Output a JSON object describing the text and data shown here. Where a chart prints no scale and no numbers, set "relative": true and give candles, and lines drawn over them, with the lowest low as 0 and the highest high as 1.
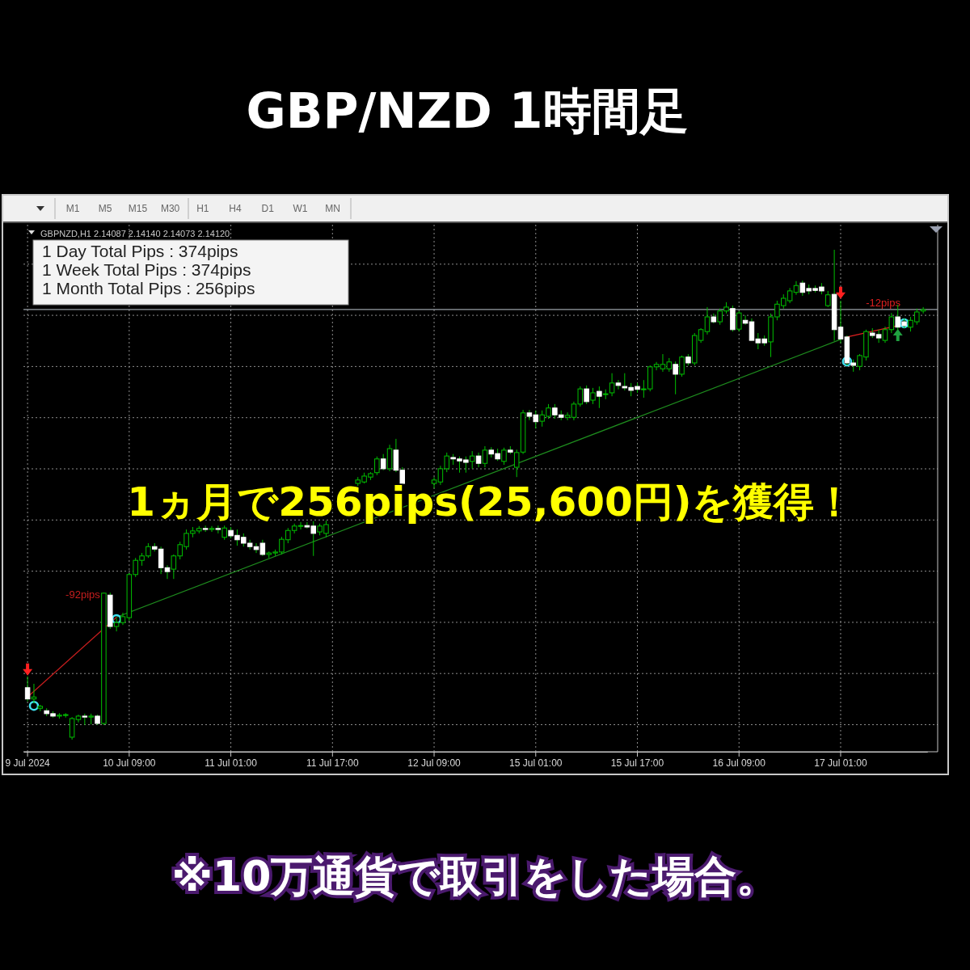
{
  "chart_data": {
    "type": "candlestick",
    "title": "GBP/NZD 1時間足",
    "relative": true,
    "grid": true,
    "categories": [
      "9 Jul 2024",
      null,
      null,
      null,
      null,
      null,
      null,
      null,
      null,
      null,
      null,
      null,
      null,
      null,
      null,
      null,
      "10 Jul 09:00",
      null,
      null,
      null,
      null,
      null,
      null,
      null,
      null,
      null,
      null,
      null,
      null,
      null,
      null,
      null,
      "11 Jul 01:00",
      null,
      null,
      null,
      null,
      null,
      null,
      null,
      null,
      null,
      null,
      null,
      null,
      null,
      null,
      null,
      "11 Jul 17:00",
      null,
      null,
      null,
      null,
      null,
      null,
      null,
      null,
      null,
      null,
      null,
      null,
      null,
      null,
      null,
      "12 Jul 09:00",
      null,
      null,
      null,
      null,
      null,
      null,
      null,
      null,
      null,
      null,
      null,
      null,
      null,
      null,
      null,
      "15 Jul 01:00",
      null,
      null,
      null,
      null,
      null,
      null,
      null,
      null,
      null,
      null,
      null,
      null,
      null,
      null,
      null,
      "15 Jul 17:00",
      null,
      null,
      null,
      null,
      null,
      null,
      null,
      null,
      null,
      null,
      null,
      null,
      null,
      null,
      null,
      "16 Jul 09:00",
      null,
      null,
      null,
      null,
      null,
      null,
      null,
      null,
      null,
      null,
      null,
      null,
      null,
      null,
      null,
      "17 Jul 01:00",
      null,
      null,
      null,
      null,
      null,
      null,
      null,
      null,
      null,
      null,
      null,
      null,
      null
    ],
    "ohlc": [
      [
        0.106,
        0.129,
        0.078,
        0.083
      ],
      [
        0.083,
        0.114,
        0.074,
        0.087
      ],
      [
        0.064,
        0.071,
        0.058,
        0.068
      ],
      [
        0.059,
        0.064,
        0.048,
        0.053
      ],
      [
        0.053,
        0.058,
        0.045,
        0.048
      ],
      [
        0.048,
        0.054,
        0.043,
        0.05
      ],
      [
        0.05,
        0.054,
        0.045,
        0.051
      ],
      [
        0.005,
        0.046,
        0,
        0.043
      ],
      [
        0.041,
        0.051,
        0.035,
        0.048
      ],
      [
        0.048,
        0.053,
        0.03,
        0.046
      ],
      [
        0.046,
        0.053,
        0.031,
        0.048
      ],
      [
        0.048,
        0.051,
        0.03,
        0.033
      ],
      [
        0.033,
        0.3,
        0.03,
        0.299
      ],
      [
        0.295,
        0.3,
        0.226,
        0.231
      ],
      [
        0.231,
        0.248,
        0.221,
        0.239
      ],
      [
        0.239,
        0.259,
        0.234,
        0.251
      ],
      [
        0.249,
        0.34,
        0.243,
        0.337
      ],
      [
        0.337,
        0.371,
        0.332,
        0.366
      ],
      [
        0.366,
        0.381,
        0.355,
        0.375
      ],
      [
        0.375,
        0.401,
        0.371,
        0.394
      ],
      [
        0.394,
        0.401,
        0.384,
        0.389
      ],
      [
        0.389,
        0.394,
        0.338,
        0.351
      ],
      [
        0.351,
        0.356,
        0.328,
        0.343
      ],
      [
        0.348,
        0.378,
        0.328,
        0.375
      ],
      [
        0.375,
        0.404,
        0.368,
        0.398
      ],
      [
        0.394,
        0.429,
        0.388,
        0.421
      ],
      [
        0.421,
        0.434,
        0.413,
        0.426
      ],
      [
        0.426,
        0.436,
        0.421,
        0.431
      ],
      [
        0.431,
        0.437,
        0.424,
        0.429
      ],
      [
        0.429,
        0.436,
        0.424,
        0.431
      ],
      [
        0.431,
        0.437,
        0.421,
        0.429
      ],
      [
        0.413,
        0.437,
        0.408,
        0.432
      ],
      [
        0.427,
        0.434,
        0.411,
        0.416
      ],
      [
        0.417,
        0.429,
        0.396,
        0.408
      ],
      [
        0.413,
        0.421,
        0.394,
        0.401
      ],
      [
        0.401,
        0.408,
        0.388,
        0.394
      ],
      [
        0.394,
        0.401,
        0.381,
        0.388
      ],
      [
        0.401,
        0.408,
        0.375,
        0.378
      ],
      [
        0.378,
        0.384,
        0.371,
        0.381
      ],
      [
        0.381,
        0.388,
        0.375,
        0.383
      ],
      [
        0.383,
        0.414,
        0.378,
        0.409
      ],
      [
        0.408,
        0.432,
        0.401,
        0.427
      ],
      [
        0.427,
        0.441,
        0.421,
        0.436
      ],
      [
        0.436,
        0.444,
        0.429,
        0.437
      ],
      [
        0.437,
        0.444,
        0.431,
        0.434
      ],
      [
        0.436,
        0.446,
        0.375,
        0.421
      ],
      [
        0.424,
        0.441,
        0.417,
        0.436
      ],
      [
        0.421,
        0.447,
        0.413,
        0.439
      ],
      null,
      null,
      null,
      null,
      [
        0.523,
        0.536,
        0.517,
        0.53
      ],
      [
        0.526,
        0.545,
        0.523,
        0.538
      ],
      [
        0.536,
        0.546,
        0.53,
        0.543
      ],
      [
        0.545,
        0.578,
        0.54,
        0.573
      ],
      [
        0.573,
        0.583,
        0.55,
        0.553
      ],
      [
        0.553,
        0.602,
        0.548,
        0.594
      ],
      [
        0.591,
        0.614,
        0.546,
        0.55
      ],
      [
        0.55,
        0.556,
        0.52,
        0.523
      ],
      null,
      null,
      null,
      null,
      [
        0.523,
        0.536,
        0.513,
        0.53
      ],
      [
        0.526,
        0.559,
        0.52,
        0.553
      ],
      [
        0.553,
        0.586,
        0.546,
        0.579
      ],
      [
        0.576,
        0.583,
        0.561,
        0.573
      ],
      [
        0.573,
        0.578,
        0.545,
        0.569
      ],
      [
        0.571,
        0.578,
        0.545,
        0.566
      ],
      [
        0.568,
        0.589,
        0.553,
        0.579
      ],
      [
        0.579,
        0.586,
        0.556,
        0.564
      ],
      [
        0.564,
        0.599,
        0.556,
        0.591
      ],
      [
        0.591,
        0.597,
        0.576,
        0.583
      ],
      [
        0.584,
        0.594,
        0.569,
        0.573
      ],
      [
        0.568,
        0.596,
        0.561,
        0.591
      ],
      [
        0.591,
        0.599,
        0.583,
        0.587
      ],
      [
        0.556,
        0.592,
        0.536,
        0.586
      ],
      [
        0.587,
        0.673,
        0.583,
        0.667
      ],
      [
        0.667,
        0.673,
        0.652,
        0.66
      ],
      [
        0.663,
        0.672,
        0.635,
        0.649
      ],
      [
        0.65,
        0.672,
        0.639,
        0.663
      ],
      [
        0.66,
        0.685,
        0.655,
        0.677
      ],
      [
        0.677,
        0.685,
        0.655,
        0.663
      ],
      [
        0.663,
        0.672,
        0.652,
        0.658
      ],
      [
        0.658,
        0.668,
        0.652,
        0.662
      ],
      [
        0.658,
        0.69,
        0.652,
        0.685
      ],
      [
        0.685,
        0.721,
        0.68,
        0.716
      ],
      [
        0.716,
        0.723,
        0.685,
        0.69
      ],
      [
        0.693,
        0.718,
        0.685,
        0.708
      ],
      [
        0.711,
        0.721,
        0.677,
        0.701
      ],
      [
        0.705,
        0.715,
        0.695,
        0.706
      ],
      [
        0.708,
        0.748,
        0.701,
        0.728
      ],
      [
        0.728,
        0.734,
        0.715,
        0.723
      ],
      [
        0.721,
        0.748,
        0.713,
        0.718
      ],
      [
        0.719,
        0.728,
        0.701,
        0.713
      ],
      [
        0.721,
        0.728,
        0.708,
        0.715
      ],
      [
        0.715,
        0.734,
        0.698,
        0.716
      ],
      [
        0.716,
        0.764,
        0.711,
        0.761
      ],
      [
        0.761,
        0.771,
        0.754,
        0.766
      ],
      [
        0.757,
        0.787,
        0.751,
        0.766
      ],
      [
        0.757,
        0.779,
        0.751,
        0.771
      ],
      [
        0.766,
        0.772,
        0.705,
        0.746
      ],
      [
        0.746,
        0.784,
        0.741,
        0.781
      ],
      [
        0.781,
        0.787,
        0.764,
        0.769
      ],
      [
        0.769,
        0.83,
        0.764,
        0.825
      ],
      [
        0.815,
        0.84,
        0.81,
        0.837
      ],
      [
        0.833,
        0.883,
        0.827,
        0.863
      ],
      [
        0.863,
        0.87,
        0.85,
        0.853
      ],
      [
        0.853,
        0.88,
        0.847,
        0.875
      ],
      [
        0.875,
        0.893,
        0.87,
        0.883
      ],
      [
        0.88,
        0.886,
        0.833,
        0.837
      ],
      [
        0.838,
        0.875,
        0.833,
        0.871
      ],
      [
        0.856,
        0.866,
        0.847,
        0.85
      ],
      [
        0.853,
        0.86,
        0.814,
        0.815
      ],
      [
        0.818,
        0.83,
        0.797,
        0.81
      ],
      [
        0.818,
        0.825,
        0.804,
        0.81
      ],
      [
        0.812,
        0.87,
        0.781,
        0.863
      ],
      [
        0.863,
        0.896,
        0.856,
        0.889
      ],
      [
        0.886,
        0.909,
        0.88,
        0.901
      ],
      [
        0.896,
        0.922,
        0.891,
        0.916
      ],
      [
        0.913,
        0.936,
        0.908,
        0.927
      ],
      [
        0.932,
        0.937,
        0.906,
        0.913
      ],
      [
        0.921,
        0.929,
        0.909,
        0.916
      ],
      [
        0.921,
        0.927,
        0.913,
        0.917
      ],
      [
        0.924,
        0.932,
        0.909,
        0.916
      ],
      [
        0.886,
        0.916,
        0.883,
        0.908
      ],
      [
        0.909,
        1,
        0.814,
        0.837
      ],
      [
        0.842,
        0.896,
        0.809,
        0.818
      ],
      [
        0.822,
        0.825,
        0.764,
        0.769
      ],
      [
        0.769,
        0.776,
        0.751,
        0.764
      ],
      [
        0.762,
        0.787,
        0.754,
        0.784
      ],
      [
        0.781,
        0.837,
        0.774,
        0.833
      ],
      [
        0.83,
        0.84,
        0.82,
        0.825
      ],
      [
        0.827,
        0.837,
        0.81,
        0.82
      ],
      [
        0.815,
        0.843,
        0.81,
        0.837
      ],
      [
        0.837,
        0.871,
        0.83,
        0.863
      ],
      [
        0.863,
        0.888,
        0.837,
        0.842
      ],
      [
        0.853,
        0.86,
        0.84,
        0.845
      ],
      [
        0.842,
        0.863,
        0.833,
        0.856
      ],
      [
        0.853,
        0.88,
        0.847,
        0.873
      ],
      [
        0.875,
        0.883,
        0.87,
        0.878
      ]
    ],
    "series": [
      {
        "type": "line",
        "name": "-92pips",
        "color": "#c81e1e",
        "values": [
          0.087,
          null,
          null,
          null,
          null,
          null,
          null,
          null,
          null,
          null,
          null,
          null,
          null,
          null,
          0.25,
          null,
          null,
          null,
          null,
          null,
          null,
          null,
          null,
          null,
          null,
          null,
          null,
          null,
          null,
          null,
          null,
          null,
          null,
          null,
          null,
          null,
          null,
          null,
          null,
          null,
          null,
          null,
          null,
          null,
          null,
          null,
          null,
          null,
          null,
          null,
          null,
          null,
          null,
          null,
          null,
          null,
          null,
          null,
          null,
          null,
          null,
          null,
          null,
          null,
          null,
          null,
          null,
          null,
          null,
          null,
          null,
          null,
          null,
          null,
          null,
          null,
          null,
          null,
          null,
          null,
          null,
          null,
          null,
          null,
          null,
          null,
          null,
          null,
          null,
          null,
          null,
          null,
          null,
          null,
          null,
          null,
          null,
          null,
          null,
          null,
          null,
          null,
          null,
          null,
          null,
          null,
          null,
          null,
          null,
          null,
          null,
          null,
          null,
          null,
          null,
          null,
          null,
          null,
          null,
          null,
          null,
          null,
          null,
          null,
          null,
          null,
          null,
          null,
          null,
          null,
          null,
          null,
          null,
          null,
          null,
          null,
          null,
          null,
          null,
          null,
          null,
          null
        ]
      },
      {
        "type": "line",
        "color": "#1e8c1e",
        "values": [
          null,
          null,
          null,
          null,
          null,
          null,
          null,
          null,
          null,
          null,
          null,
          null,
          null,
          null,
          0.25,
          null,
          null,
          null,
          null,
          null,
          null,
          null,
          null,
          null,
          null,
          null,
          null,
          null,
          null,
          null,
          null,
          null,
          null,
          null,
          null,
          null,
          null,
          null,
          null,
          null,
          null,
          null,
          null,
          null,
          null,
          null,
          null,
          null,
          null,
          null,
          null,
          null,
          null,
          null,
          null,
          null,
          null,
          null,
          null,
          null,
          null,
          null,
          null,
          null,
          null,
          null,
          null,
          null,
          null,
          null,
          null,
          null,
          null,
          null,
          null,
          null,
          null,
          null,
          null,
          null,
          null,
          null,
          null,
          null,
          null,
          null,
          null,
          null,
          null,
          null,
          null,
          null,
          null,
          null,
          null,
          null,
          null,
          null,
          null,
          null,
          null,
          null,
          null,
          null,
          null,
          null,
          null,
          null,
          null,
          null,
          null,
          null,
          null,
          null,
          null,
          null,
          null,
          null,
          null,
          null,
          null,
          null,
          null,
          null,
          null,
          null,
          null,
          null,
          0.817,
          null,
          null,
          null,
          null,
          null,
          null,
          null,
          null,
          null,
          null,
          null,
          null,
          null
        ]
      },
      {
        "type": "line",
        "name": "-12pips",
        "color": "#e02020",
        "values": [
          null,
          null,
          null,
          null,
          null,
          null,
          null,
          null,
          null,
          null,
          null,
          null,
          null,
          null,
          null,
          null,
          null,
          null,
          null,
          null,
          null,
          null,
          null,
          null,
          null,
          null,
          null,
          null,
          null,
          null,
          null,
          null,
          null,
          null,
          null,
          null,
          null,
          null,
          null,
          null,
          null,
          null,
          null,
          null,
          null,
          null,
          null,
          null,
          null,
          null,
          null,
          null,
          null,
          null,
          null,
          null,
          null,
          null,
          null,
          null,
          null,
          null,
          null,
          null,
          null,
          null,
          null,
          null,
          null,
          null,
          null,
          null,
          null,
          null,
          null,
          null,
          null,
          null,
          null,
          null,
          null,
          null,
          null,
          null,
          null,
          null,
          null,
          null,
          null,
          null,
          null,
          null,
          null,
          null,
          null,
          null,
          null,
          null,
          null,
          null,
          null,
          null,
          null,
          null,
          null,
          null,
          null,
          null,
          null,
          null,
          null,
          null,
          null,
          null,
          null,
          null,
          null,
          null,
          null,
          null,
          null,
          null,
          null,
          null,
          null,
          null,
          null,
          null,
          null,
          0.822,
          null,
          null,
          null,
          null,
          null,
          null,
          null,
          0.845,
          null,
          null,
          null,
          null
        ]
      },
      {
        "type": "scatter",
        "marker": "triangle",
        "color": "#ff2020",
        "values": [
          0.144,
          null,
          null,
          null,
          null,
          null,
          null,
          null,
          null,
          null,
          null,
          null,
          null,
          null,
          null,
          null,
          null,
          null,
          null,
          null,
          null,
          null,
          null,
          null,
          null,
          null,
          null,
          null,
          null,
          null,
          null,
          null,
          null,
          null,
          null,
          null,
          null,
          null,
          null,
          null,
          null,
          null,
          null,
          null,
          null,
          null,
          null,
          null,
          null,
          null,
          null,
          null,
          null,
          null,
          null,
          null,
          null,
          null,
          null,
          null,
          null,
          null,
          null,
          null,
          null,
          null,
          null,
          null,
          null,
          null,
          null,
          null,
          null,
          null,
          null,
          null,
          null,
          null,
          null,
          null,
          null,
          null,
          null,
          null,
          null,
          null,
          null,
          null,
          null,
          null,
          null,
          null,
          null,
          null,
          null,
          null,
          null,
          null,
          null,
          null,
          null,
          null,
          null,
          null,
          null,
          null,
          null,
          null,
          null,
          null,
          null,
          null,
          null,
          null,
          null,
          null,
          null,
          null,
          null,
          null,
          null,
          null,
          null,
          null,
          null,
          null,
          null,
          null,
          0.913,
          null,
          null,
          null,
          null,
          null,
          null,
          null,
          null,
          null,
          null,
          null,
          null,
          null
        ]
      },
      {
        "type": "scatter",
        "marker": "triangle",
        "color": "#20a040",
        "values": [
          null,
          null,
          null,
          null,
          null,
          null,
          null,
          null,
          null,
          null,
          null,
          null,
          null,
          null,
          null,
          null,
          null,
          null,
          null,
          null,
          null,
          null,
          null,
          null,
          null,
          null,
          null,
          null,
          null,
          null,
          null,
          null,
          null,
          null,
          null,
          null,
          null,
          null,
          null,
          null,
          null,
          null,
          null,
          null,
          null,
          null,
          null,
          null,
          null,
          null,
          null,
          null,
          null,
          null,
          null,
          null,
          null,
          null,
          null,
          null,
          null,
          null,
          null,
          null,
          null,
          null,
          null,
          null,
          null,
          null,
          null,
          null,
          null,
          null,
          null,
          null,
          null,
          null,
          null,
          null,
          null,
          null,
          null,
          null,
          null,
          null,
          null,
          null,
          null,
          null,
          null,
          null,
          null,
          null,
          null,
          null,
          null,
          null,
          null,
          null,
          null,
          null,
          null,
          null,
          null,
          null,
          null,
          null,
          null,
          null,
          null,
          null,
          null,
          null,
          null,
          null,
          null,
          null,
          null,
          null,
          null,
          null,
          null,
          null,
          null,
          null,
          null,
          null,
          null,
          null,
          null,
          null,
          null,
          null,
          null,
          null,
          null,
          0.825,
          null,
          null,
          null,
          null
        ]
      },
      {
        "type": "scatter",
        "marker": "circle",
        "color": "#40e0f0",
        "values": [
          null,
          0.069,
          null,
          null,
          null,
          null,
          null,
          null,
          null,
          null,
          null,
          null,
          null,
          null,
          0.246,
          null,
          null,
          null,
          null,
          null,
          null,
          null,
          null,
          null,
          null,
          null,
          null,
          null,
          null,
          null,
          null,
          null,
          null,
          null,
          null,
          null,
          null,
          null,
          null,
          null,
          null,
          null,
          null,
          null,
          null,
          null,
          null,
          null,
          null,
          null,
          null,
          null,
          null,
          null,
          null,
          null,
          null,
          null,
          null,
          null,
          null,
          null,
          null,
          null,
          null,
          null,
          null,
          null,
          null,
          null,
          null,
          null,
          null,
          null,
          null,
          null,
          null,
          null,
          null,
          null,
          null,
          null,
          null,
          null,
          null,
          null,
          null,
          null,
          null,
          null,
          null,
          null,
          null,
          null,
          null,
          null,
          null,
          null,
          null,
          null,
          null,
          null,
          null,
          null,
          null,
          null,
          null,
          null,
          null,
          null,
          null,
          null,
          null,
          null,
          null,
          null,
          null,
          null,
          null,
          null,
          null,
          null,
          null,
          null,
          null,
          null,
          null,
          null,
          null,
          0.772,
          null,
          null,
          null,
          null,
          null,
          null,
          null,
          null,
          0.85,
          null,
          null,
          null
        ]
      }
    ],
    "ref_lines": [
      {
        "axis": "y",
        "value": 0.878,
        "color": "#9aa0a8"
      }
    ],
    "annotations": [
      "GBPNZD,H1  2.14087 2.14140 2.14073 2.14120",
      "1 Day Total Pips : 374pips",
      "1 Week Total Pips : 374pips",
      "1 Month Total Pips : 256pips",
      "1ヵ月で256pips(25,600円)を獲得！",
      "※10万通貨で取引をした場合。",
      "M1",
      "M5",
      "M15",
      "M30",
      "H1",
      "H4",
      "D1",
      "W1",
      "MN"
    ]
  }
}
